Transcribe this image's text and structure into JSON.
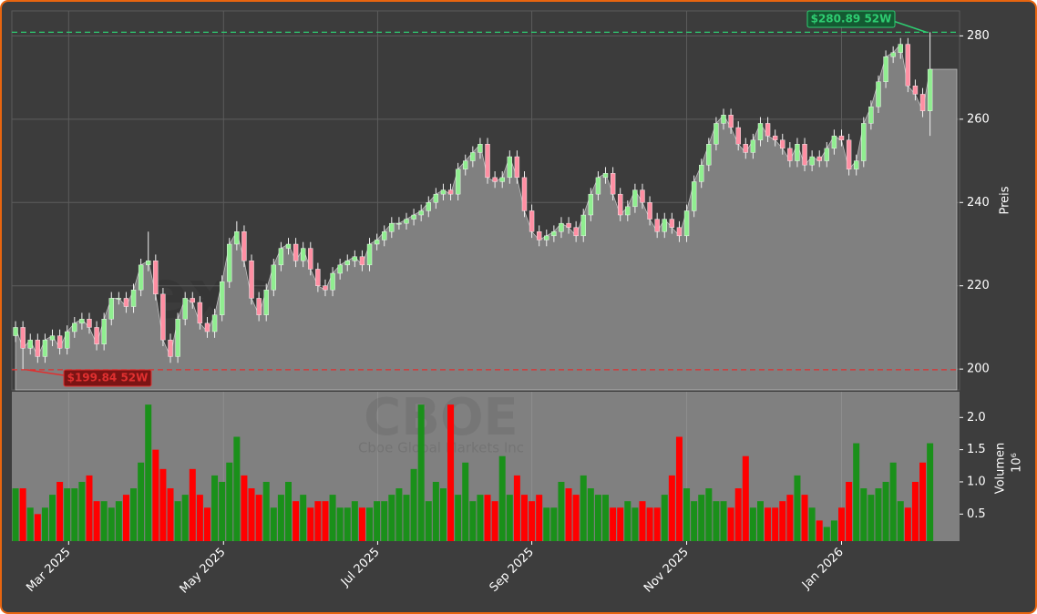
{
  "chart_data": {
    "type": "candlestick",
    "ylabel": "Preis",
    "xlim": [
      -0.5,
      128
    ],
    "xticks": [
      {
        "value": 7.2,
        "label": "Mar 2025"
      },
      {
        "value": 28.2,
        "label": "May 2025"
      },
      {
        "value": 49.1,
        "label": "Jul 2025"
      },
      {
        "value": 70,
        "label": "Sep 2025"
      },
      {
        "value": 91,
        "label": "Nov 2025"
      },
      {
        "value": 112,
        "label": "Jan 2026"
      }
    ],
    "ylim": [
      195,
      286
    ],
    "yticks": [
      200,
      220,
      240,
      260,
      280
    ],
    "grid": true,
    "up_color": "#90ee90",
    "down_color": "#ff8fa3",
    "area_color": "#808080",
    "open": [
      208,
      210,
      205,
      207,
      203,
      207,
      208,
      205,
      209,
      211,
      212,
      210,
      206,
      212,
      217,
      217,
      215,
      219,
      225,
      226,
      218,
      207,
      203,
      212,
      217,
      216,
      211,
      209,
      213,
      221,
      230,
      233,
      226,
      217,
      213,
      219,
      225,
      229,
      230,
      226,
      229,
      224,
      220,
      219,
      223,
      225,
      226,
      227,
      225,
      230,
      231,
      233,
      235,
      235,
      236,
      237,
      238,
      240,
      242,
      243,
      242,
      248,
      250,
      252,
      254,
      246,
      245,
      246,
      251,
      246,
      238,
      233,
      231,
      232,
      233,
      235,
      234,
      232,
      237,
      242,
      246,
      247,
      242,
      237,
      239,
      243,
      240,
      236,
      233,
      236,
      234,
      232,
      238,
      245,
      249,
      254,
      259,
      261,
      258,
      254,
      252,
      255,
      259,
      256,
      255,
      253,
      250,
      254,
      249,
      251,
      250,
      253,
      256,
      255,
      248,
      250,
      259,
      263,
      269,
      275,
      276,
      278,
      268,
      266,
      262
    ],
    "high": [
      211.5,
      211.5,
      208.5,
      208.5,
      208.5,
      209.5,
      209.5,
      210.5,
      212.5,
      213.5,
      213.5,
      211.5,
      213.5,
      218.5,
      218.5,
      218.5,
      220.5,
      226.5,
      233,
      227.5,
      219.5,
      208.5,
      213.5,
      218.5,
      218.5,
      217.5,
      212.5,
      214.5,
      222.5,
      231.5,
      235.5,
      234.5,
      227.5,
      218.5,
      220.5,
      226.5,
      230.5,
      231.5,
      231.5,
      230.5,
      230.5,
      225.5,
      221.5,
      224.5,
      226.5,
      227.5,
      228.5,
      228.5,
      231.5,
      232.5,
      234.5,
      236.5,
      236.5,
      237.5,
      238.5,
      239.5,
      241.5,
      243.5,
      244.5,
      244.5,
      249.5,
      251.5,
      253.5,
      255.5,
      255.5,
      247.5,
      247.5,
      252.5,
      252.5,
      247.5,
      239.5,
      234.5,
      233.5,
      234.5,
      236.5,
      236.5,
      235.5,
      238.5,
      243.5,
      247.5,
      248.5,
      248.5,
      243.5,
      240.5,
      244.5,
      244.5,
      241.5,
      237.5,
      237.5,
      237.5,
      235.5,
      239.5,
      246.5,
      250.5,
      255.5,
      260.5,
      262.5,
      262.5,
      259.5,
      255.5,
      256.5,
      260.5,
      260.5,
      257.5,
      256.5,
      254.5,
      255.5,
      255.5,
      252.5,
      252.5,
      254.5,
      257.5,
      257.5,
      256.5,
      251.5,
      260.5,
      264.5,
      270.5,
      276.5,
      277.5,
      279.5,
      279.5,
      269.5,
      267.5,
      280.89
    ],
    "low": [
      206.5,
      199.84,
      203.5,
      201.5,
      201.5,
      205.5,
      203.5,
      203.5,
      207.5,
      209.5,
      208.5,
      204.5,
      204.5,
      210.5,
      215.5,
      213.5,
      213.5,
      217.5,
      223.5,
      216.5,
      205.5,
      201.5,
      201.5,
      210.5,
      214.5,
      209.5,
      207.5,
      207.5,
      211.5,
      219.5,
      228.5,
      224.5,
      215.5,
      211.5,
      211.5,
      217.5,
      223.5,
      227.5,
      224.5,
      224.5,
      222.5,
      218.5,
      217.5,
      217.5,
      221.5,
      223.5,
      224.5,
      223.5,
      223.5,
      228.5,
      229.5,
      231.5,
      233.5,
      233.5,
      234.5,
      235.5,
      236.5,
      238.5,
      240.5,
      240.5,
      240.5,
      246.5,
      248.5,
      250.5,
      244.5,
      243.5,
      243.5,
      244.5,
      244.5,
      236.5,
      231.5,
      229.5,
      229.5,
      230.5,
      231.5,
      232.5,
      230.5,
      230.5,
      235.5,
      240.5,
      244.5,
      240.5,
      235.5,
      235.5,
      237.5,
      238.5,
      234.5,
      231.5,
      231.5,
      232.5,
      230.5,
      230.5,
      236.5,
      243.5,
      247.5,
      252.5,
      257.5,
      256.5,
      252.5,
      250.5,
      250.5,
      253.5,
      254.5,
      253.5,
      251.5,
      248.5,
      248.5,
      247.5,
      247.5,
      248.5,
      248.5,
      251.5,
      253.5,
      246.5,
      246.5,
      248.5,
      257.5,
      261.5,
      267.5,
      273.5,
      274.5,
      266.5,
      264.5,
      260.5,
      256
    ],
    "close": [
      210,
      205,
      207,
      203,
      207,
      208,
      205,
      209,
      211,
      212,
      210,
      206,
      212,
      217,
      217,
      215,
      219,
      225,
      226,
      218,
      207,
      203,
      212,
      217,
      216,
      211,
      209,
      213,
      221,
      230,
      233,
      226,
      217,
      213,
      219,
      225,
      229,
      230,
      226,
      229,
      224,
      220,
      219,
      223,
      225,
      226,
      227,
      225,
      230,
      231,
      233,
      235,
      235,
      236,
      237,
      238,
      240,
      242,
      243,
      242,
      248,
      250,
      252,
      254,
      246,
      245,
      246,
      251,
      246,
      238,
      233,
      231,
      232,
      233,
      235,
      234,
      232,
      237,
      242,
      246,
      247,
      242,
      237,
      239,
      243,
      240,
      236,
      233,
      236,
      234,
      232,
      238,
      245,
      249,
      254,
      259,
      261,
      258,
      254,
      252,
      255,
      259,
      256,
      255,
      253,
      250,
      254,
      249,
      251,
      250,
      253,
      256,
      255,
      248,
      250,
      259,
      263,
      269,
      275,
      276,
      278,
      268,
      266,
      262,
      272
    ],
    "annotations": [
      {
        "value": 280.89,
        "label": "$280.89 52W",
        "color": "#2ecc71"
      },
      {
        "value": 199.84,
        "label": "$199.84 52W",
        "color": "#e03030"
      }
    ],
    "watermarks": [
      "exsignale.trade",
      "CBOE",
      "Cboe Global Markets Inc"
    ],
    "volume": {
      "ylabel": "Volumen",
      "scale_label": "10⁶",
      "up_color": "#1a901a",
      "down_color": "#ff0000",
      "ylim": [
        0.08,
        2.4
      ],
      "yticks": [
        0.5,
        {
          "value": 1,
          "label": "1.0"
        },
        1.5,
        {
          "value": 2,
          "label": "2.0"
        }
      ],
      "values": [
        0.9,
        0.9,
        0.6,
        0.5,
        0.6,
        0.8,
        1.0,
        0.9,
        0.9,
        1.0,
        1.1,
        0.7,
        0.7,
        0.6,
        0.7,
        0.8,
        0.9,
        1.3,
        2.2,
        1.5,
        1.2,
        0.9,
        0.7,
        0.8,
        1.2,
        0.8,
        0.6,
        1.1,
        1.0,
        1.3,
        1.7,
        1.1,
        0.9,
        0.8,
        1.0,
        0.6,
        0.8,
        1.0,
        0.7,
        0.8,
        0.6,
        0.7,
        0.7,
        0.8,
        0.6,
        0.6,
        0.7,
        0.6,
        0.6,
        0.7,
        0.7,
        0.8,
        0.9,
        0.8,
        1.2,
        2.2,
        0.7,
        1.0,
        0.9,
        2.2,
        0.8,
        1.3,
        0.7,
        0.8,
        0.8,
        0.7,
        1.4,
        0.8,
        1.1,
        0.8,
        0.7,
        0.8,
        0.6,
        0.6,
        1.0,
        0.9,
        0.8,
        1.1,
        0.9,
        0.8,
        0.8,
        0.6,
        0.6,
        0.7,
        0.6,
        0.7,
        0.6,
        0.6,
        0.8,
        1.1,
        1.7,
        0.9,
        0.7,
        0.8,
        0.9,
        0.7,
        0.7,
        0.6,
        0.9,
        1.4,
        0.6,
        0.7,
        0.6,
        0.6,
        0.7,
        0.8,
        1.1,
        0.8,
        0.6,
        0.4,
        0.3,
        0.4,
        0.6,
        1.0,
        1.6,
        0.9,
        0.8,
        0.9,
        1.0,
        1.3,
        0.7,
        0.6,
        1.0,
        1.3,
        1.6
      ]
    }
  }
}
